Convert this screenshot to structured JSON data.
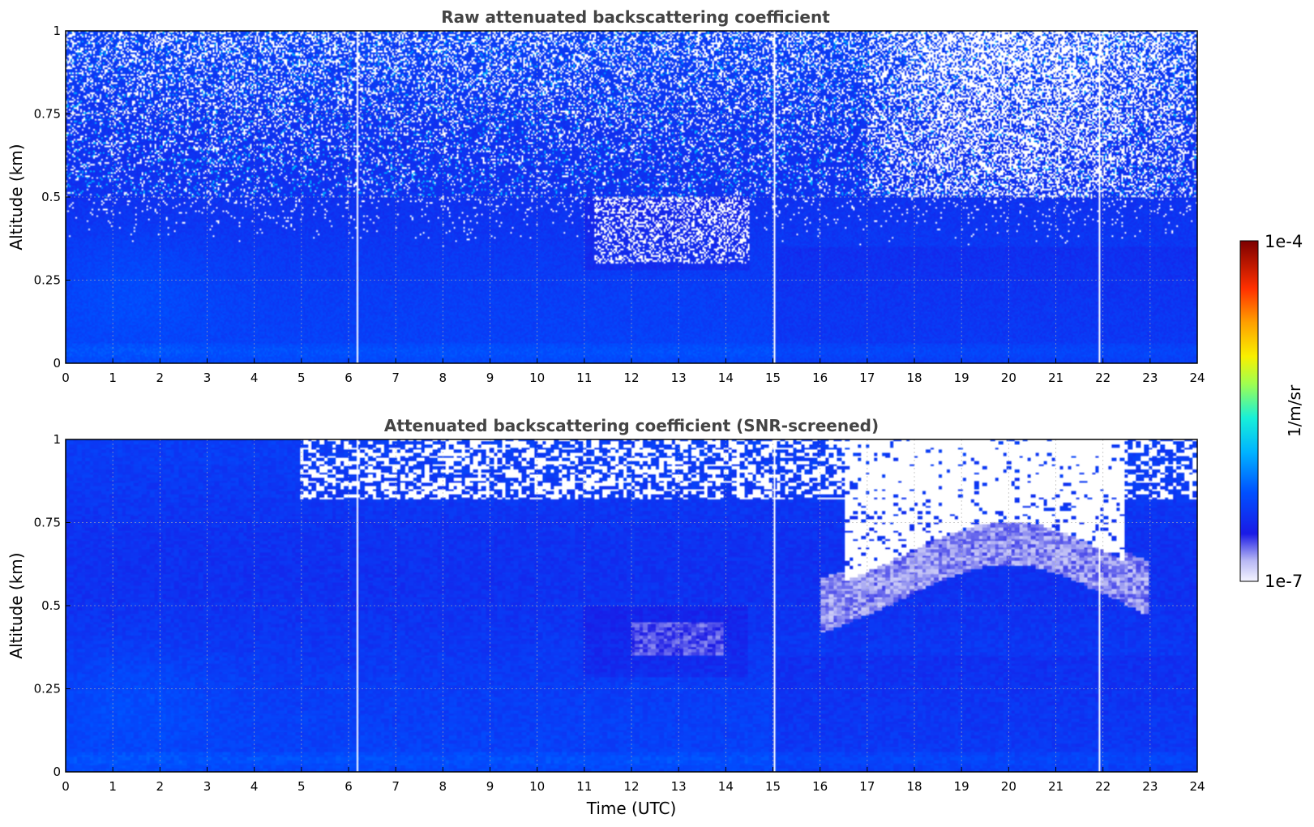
{
  "chart_data": [
    {
      "type": "heatmap",
      "title": "Raw attenuated backscattering coefficient",
      "xlabel": "",
      "ylabel": "Altitude (km)",
      "xlim": [
        0,
        24
      ],
      "ylim": [
        0,
        1
      ],
      "xticks": [
        "0",
        "1",
        "2",
        "3",
        "4",
        "5",
        "6",
        "7",
        "8",
        "9",
        "10",
        "11",
        "12",
        "13",
        "14",
        "15",
        "16",
        "17",
        "18",
        "19",
        "20",
        "21",
        "22",
        "23",
        "24"
      ],
      "yticks": [
        "0",
        "0.25",
        "0.5",
        "0.75",
        "1"
      ],
      "grid": true,
      "screened": false,
      "gap_times": [
        6.17,
        15.0,
        21.9
      ]
    },
    {
      "type": "heatmap",
      "title": "Attenuated backscattering coefficient (SNR-screened)",
      "xlabel": "Time (UTC)",
      "ylabel": "Altitude (km)",
      "xlim": [
        0,
        24
      ],
      "ylim": [
        0,
        1
      ],
      "xticks": [
        "0",
        "1",
        "2",
        "3",
        "4",
        "5",
        "6",
        "7",
        "8",
        "9",
        "10",
        "11",
        "12",
        "13",
        "14",
        "15",
        "16",
        "17",
        "18",
        "19",
        "20",
        "21",
        "22",
        "23",
        "24"
      ],
      "yticks": [
        "0",
        "0.25",
        "0.5",
        "0.75",
        "1"
      ],
      "grid": true,
      "screened": true,
      "gap_times": [
        6.17,
        15.0,
        21.9
      ]
    }
  ],
  "colorbar": {
    "label": "1/m/sr",
    "max_label": "1e-4",
    "min_label": "1e-7",
    "scale": "log",
    "colormap": "jet-with-white-low"
  }
}
